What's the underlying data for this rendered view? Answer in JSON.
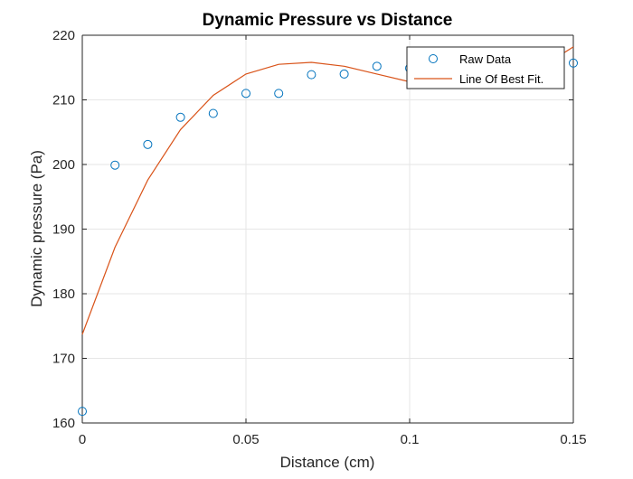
{
  "chart_data": {
    "type": "scatter",
    "title": "Dynamic Pressure vs Distance",
    "xlabel": "Distance (cm)",
    "ylabel": "Dynamic pressure (Pa)",
    "xlim": [
      0,
      0.15
    ],
    "ylim": [
      160,
      220
    ],
    "xticks": [
      0,
      0.05,
      0.1,
      0.15
    ],
    "xtick_labels": [
      "0",
      "0.05",
      "0.1",
      "0.15"
    ],
    "yticks": [
      160,
      170,
      180,
      190,
      200,
      210,
      220
    ],
    "ytick_labels": [
      "160",
      "170",
      "180",
      "190",
      "200",
      "210",
      "220"
    ],
    "grid": true,
    "legend": {
      "placement": "top-right"
    },
    "series": [
      {
        "name": "Raw Data",
        "kind": "markers",
        "color": "#0072BD",
        "x": [
          0,
          0.01,
          0.02,
          0.03,
          0.04,
          0.05,
          0.06,
          0.07,
          0.08,
          0.09,
          0.1,
          0.11,
          0.12,
          0.13,
          0.14,
          0.15
        ],
        "y": [
          161.8,
          199.9,
          203.1,
          207.3,
          207.9,
          211.0,
          211.0,
          213.9,
          214.0,
          215.2,
          214.9,
          214.8,
          214.6,
          214.4,
          214.3,
          215.7
        ]
      },
      {
        "name": "Line Of Best Fit.",
        "kind": "line",
        "color": "#D95319",
        "x": [
          0,
          0.01,
          0.02,
          0.03,
          0.04,
          0.05,
          0.06,
          0.07,
          0.08,
          0.09,
          0.1,
          0.11,
          0.12,
          0.13,
          0.14,
          0.15
        ],
        "y": [
          173.7,
          187.2,
          197.6,
          205.4,
          210.7,
          214.0,
          215.5,
          215.8,
          215.2,
          214.0,
          212.8,
          212.0,
          211.9,
          212.8,
          215.0,
          218.2
        ]
      }
    ]
  }
}
